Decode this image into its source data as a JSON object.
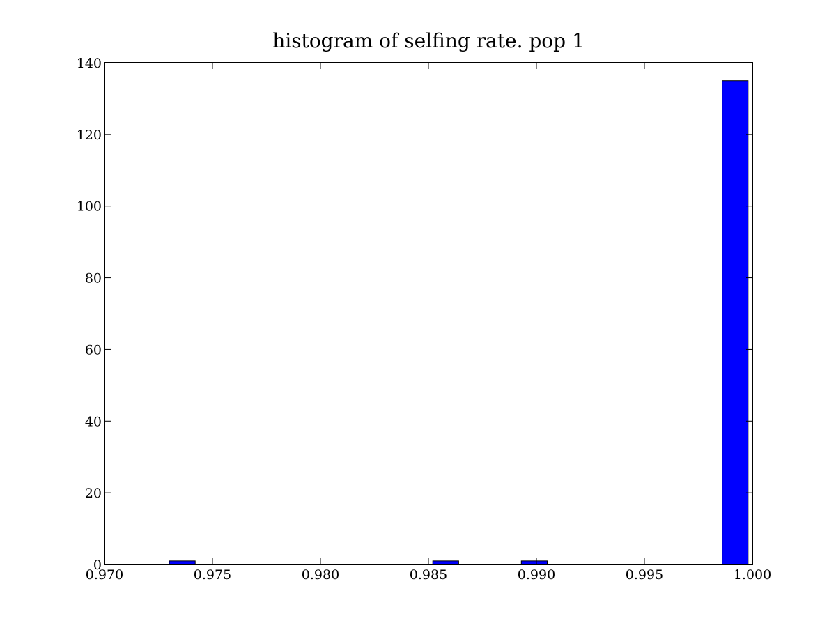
{
  "chart_data": {
    "type": "bar",
    "title": "histogram of selfing rate. pop 1",
    "xlabel": "",
    "ylabel": "",
    "xlim": [
      0.97,
      1.0
    ],
    "ylim": [
      0,
      140
    ],
    "bar_color": "#0000ff",
    "edge_color": "#000000",
    "grid": false,
    "bars": [
      {
        "x0": 0.973,
        "x1": 0.9742,
        "value": 1
      },
      {
        "x0": 0.9852,
        "x1": 0.9864,
        "value": 1
      },
      {
        "x0": 0.9893,
        "x1": 0.9905,
        "value": 1
      },
      {
        "x0": 0.9986,
        "x1": 0.9998,
        "value": 135
      }
    ],
    "xticks": [
      0.97,
      0.975,
      0.98,
      0.985,
      0.99,
      0.995,
      1.0
    ],
    "xtick_labels": [
      "0.970",
      "0.975",
      "0.980",
      "0.985",
      "0.990",
      "0.995",
      "1.000"
    ],
    "yticks": [
      0,
      20,
      40,
      60,
      80,
      100,
      120,
      140
    ],
    "ytick_labels": [
      "0",
      "20",
      "40",
      "60",
      "80",
      "100",
      "120",
      "140"
    ]
  }
}
